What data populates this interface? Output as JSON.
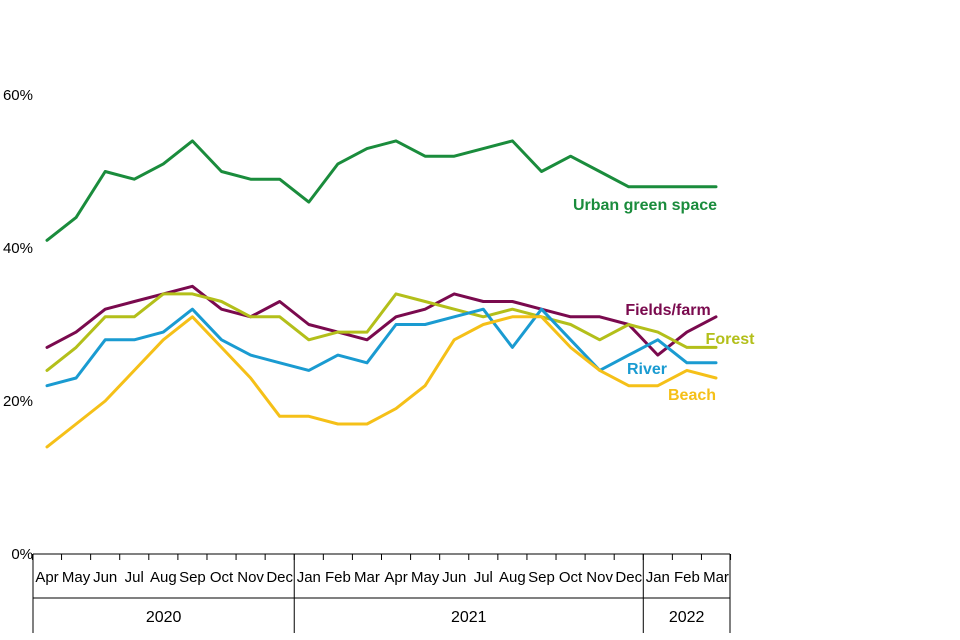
{
  "chart_data": {
    "type": "line",
    "title": "",
    "xlabel": "",
    "ylabel": "",
    "ylim": [
      0,
      60
    ],
    "yticks": [
      "0%",
      "20%",
      "40%",
      "60%"
    ],
    "ytick_values": [
      0,
      20,
      40,
      60
    ],
    "grid": false,
    "categories": [
      "Apr",
      "May",
      "Jun",
      "Jul",
      "Aug",
      "Sep",
      "Oct",
      "Nov",
      "Dec",
      "Jan",
      "Feb",
      "Mar",
      "Apr",
      "May",
      "Jun",
      "Jul",
      "Aug",
      "Sep",
      "Oct",
      "Nov",
      "Dec",
      "Jan",
      "Feb",
      "Mar"
    ],
    "years": [
      {
        "label": "2020",
        "span": 9
      },
      {
        "label": "2021",
        "span": 12
      },
      {
        "label": "2022",
        "span": 3
      }
    ],
    "series": [
      {
        "name": "Urban green space",
        "color": "#1a8c3c",
        "values": [
          41,
          44,
          50,
          49,
          51,
          54,
          50,
          49,
          49,
          46,
          51,
          53,
          54,
          52,
          52,
          53,
          54,
          50,
          52,
          50,
          48,
          48,
          48,
          48
        ]
      },
      {
        "name": "Fields/farm",
        "color": "#7a0a4e",
        "values": [
          27,
          29,
          32,
          33,
          34,
          35,
          32,
          31,
          33,
          30,
          29,
          28,
          31,
          32,
          34,
          33,
          33,
          32,
          31,
          31,
          30,
          26,
          29,
          31
        ]
      },
      {
        "name": "Forest",
        "color": "#b3bf1a",
        "values": [
          24,
          27,
          31,
          31,
          34,
          34,
          33,
          31,
          31,
          28,
          29,
          29,
          34,
          33,
          32,
          31,
          32,
          31,
          30,
          28,
          30,
          29,
          27,
          27
        ]
      },
      {
        "name": "River",
        "color": "#1a9bd1",
        "values": [
          22,
          23,
          28,
          28,
          29,
          32,
          28,
          26,
          25,
          24,
          26,
          25,
          30,
          30,
          31,
          32,
          27,
          32,
          28,
          24,
          26,
          28,
          25,
          25
        ]
      },
      {
        "name": "Beach",
        "color": "#f5c018",
        "values": [
          14,
          17,
          20,
          24,
          28,
          31,
          27,
          23,
          18,
          18,
          17,
          17,
          19,
          22,
          28,
          30,
          31,
          31,
          27,
          24,
          22,
          22,
          24,
          23
        ]
      }
    ]
  }
}
